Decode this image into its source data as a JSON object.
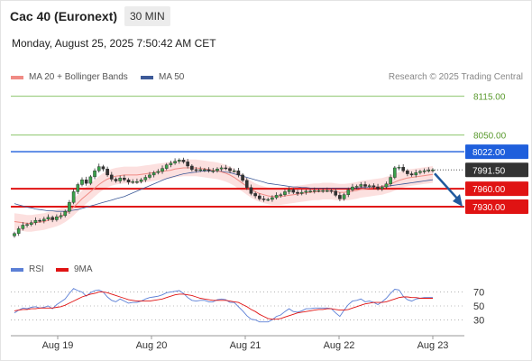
{
  "header": {
    "title": "Cac 40 (Euronext)",
    "timeframe": "30 MIN",
    "datetime": "Monday, August 25, 2025 7:50:42 AM CET"
  },
  "legend": {
    "items": [
      {
        "label": "MA 20 + Bollinger Bands",
        "color": "#f08b85"
      },
      {
        "label": "MA 50",
        "color": "#3d5a98"
      }
    ],
    "credit": "Research © 2025 Trading Central"
  },
  "levels": [
    {
      "value": 8115.0,
      "label": "8115.00",
      "kind": "target",
      "color": "#8cc56b",
      "text_color": "#5a9a2e"
    },
    {
      "value": 8050.0,
      "label": "8050.00",
      "kind": "target",
      "color": "#8cc56b",
      "text_color": "#5a9a2e"
    },
    {
      "value": 8022.0,
      "label": "8022.00",
      "kind": "pivot",
      "color": "#1f5fdc",
      "text_color": "#ffffff"
    },
    {
      "value": 7991.5,
      "label": "7991.50",
      "kind": "last",
      "color": "#333333",
      "text_color": "#ffffff"
    },
    {
      "value": 7960.0,
      "label": "7960.00",
      "kind": "support",
      "color": "#e01313",
      "text_color": "#ffffff"
    },
    {
      "value": 7930.0,
      "label": "7930.00",
      "kind": "support",
      "color": "#e01313",
      "text_color": "#ffffff"
    }
  ],
  "rsi": {
    "legend": [
      {
        "label": "RSI",
        "color": "#5b7fd6"
      },
      {
        "label": "9MA",
        "color": "#e01313"
      }
    ],
    "levels": [
      {
        "value": 70,
        "label": "70"
      },
      {
        "value": 50,
        "label": "50"
      },
      {
        "value": 30,
        "label": "30"
      }
    ]
  },
  "x_axis": {
    "labels": [
      "Aug 19",
      "Aug 20",
      "Aug 21",
      "Aug 22",
      "Aug 23"
    ]
  },
  "chart_data": {
    "type": "candlestick",
    "instrument": "Cac 40 (Euronext)",
    "interval": "30 MIN",
    "y_range": [
      7880,
      8125
    ],
    "x_categories": [
      "Aug 19",
      "Aug 20",
      "Aug 21",
      "Aug 22",
      "Aug 23"
    ],
    "close_path": [
      7885,
      7893,
      7899,
      7900,
      7903,
      7907,
      7906,
      7909,
      7912,
      7908,
      7913,
      7915,
      7922,
      7937,
      7955,
      7967,
      7975,
      7969,
      7980,
      7990,
      7997,
      7993,
      7983,
      7976,
      7973,
      7978,
      7975,
      7971,
      7972,
      7972,
      7975,
      7979,
      7983,
      7987,
      7989,
      7994,
      8000,
      8003,
      8006,
      8008,
      8005,
      7998,
      7992,
      7991,
      7992,
      7992,
      7990,
      7990,
      7993,
      7995,
      7994,
      7990,
      7990,
      7983,
      7974,
      7962,
      7952,
      7948,
      7943,
      7942,
      7942,
      7945,
      7949,
      7950,
      7955,
      7958,
      7954,
      7952,
      7954,
      7956,
      7956,
      7957,
      7957,
      7957,
      7957,
      7956,
      7949,
      7943,
      7950,
      7958,
      7963,
      7964,
      7967,
      7964,
      7965,
      7963,
      7960,
      7963,
      7968,
      7979,
      7995,
      7996,
      7990,
      7985,
      7983,
      7987,
      7989,
      7990,
      7991,
      7991.5
    ],
    "ma20_path": [
      7905,
      7904,
      7903,
      7902,
      7902,
      7903,
      7904,
      7905,
      7907,
      7909,
      7911,
      7914,
      7918,
      7923,
      7929,
      7936,
      7943,
      7949,
      7955,
      7961,
      7967,
      7972,
      7976,
      7979,
      7981,
      7982,
      7983,
      7983,
      7983,
      7983,
      7984,
      7985,
      7986,
      7987,
      7988,
      7989,
      7990,
      7991,
      7993,
      7994,
      7995,
      7995,
      7995,
      7995,
      7994,
      7993,
      7992,
      7991,
      7990,
      7988,
      7986,
      7983,
      7979,
      7974,
      7969,
      7964,
      7959,
      7955,
      7952,
      7950,
      7948,
      7947,
      7947,
      7947,
      7948,
      7949,
      7950,
      7951,
      7952,
      7953,
      7954,
      7955,
      7955,
      7956,
      7956,
      7956,
      7955,
      7954,
      7954,
      7955,
      7956,
      7957,
      7959,
      7960,
      7961,
      7962,
      7963,
      7964,
      7966,
      7968,
      7971,
      7974,
      7976,
      7978,
      7979,
      7980,
      7981,
      7982,
      7983,
      7984
    ],
    "ma50_path": [
      7935,
      7933,
      7931,
      7929,
      7928,
      7926,
      7925,
      7924,
      7923,
      7923,
      7922,
      7922,
      7922,
      7923,
      7924,
      7925,
      7927,
      7929,
      7931,
      7933,
      7935,
      7937,
      7939,
      7941,
      7943,
      7945,
      7947,
      7950,
      7953,
      7956,
      7959,
      7962,
      7965,
      7968,
      7971,
      7974,
      7977,
      7979,
      7981,
      7983,
      7985,
      7986,
      7987,
      7988,
      7989,
      7990,
      7990,
      7990,
      7990,
      7989,
      7988,
      7987,
      7985,
      7983,
      7981,
      7979,
      7977,
      7975,
      7973,
      7971,
      7969,
      7968,
      7967,
      7966,
      7965,
      7964,
      7963,
      7963,
      7962,
      7962,
      7961,
      7961,
      7961,
      7961,
      7961,
      7961,
      7961,
      7961,
      7961,
      7961,
      7961,
      7961,
      7962,
      7962,
      7962,
      7963,
      7963,
      7964,
      7964,
      7965,
      7966,
      7967,
      7968,
      7969,
      7970,
      7971,
      7972,
      7973,
      7974,
      7975
    ],
    "rsi_path": [
      40,
      44,
      47,
      46,
      48,
      49,
      47,
      48,
      50,
      46,
      52,
      56,
      60,
      68,
      75,
      72,
      70,
      64,
      69,
      72,
      73,
      70,
      63,
      58,
      56,
      60,
      57,
      54,
      55,
      55,
      57,
      60,
      62,
      63,
      64,
      66,
      69,
      70,
      71,
      72,
      68,
      62,
      58,
      57,
      58,
      58,
      56,
      56,
      59,
      60,
      59,
      55,
      55,
      49,
      43,
      36,
      31,
      30,
      27,
      27,
      27,
      30,
      35,
      37,
      42,
      46,
      42,
      41,
      43,
      46,
      46,
      47,
      47,
      47,
      47,
      46,
      40,
      35,
      44,
      52,
      57,
      58,
      60,
      56,
      57,
      55,
      52,
      56,
      61,
      68,
      74,
      73,
      64,
      59,
      57,
      60,
      61,
      62,
      62,
      62
    ],
    "rsi_ma_path": [
      43,
      44,
      45,
      45,
      46,
      46,
      47,
      47,
      47,
      47,
      48,
      49,
      51,
      54,
      57,
      60,
      63,
      65,
      67,
      68,
      70,
      70,
      69,
      67,
      65,
      63,
      61,
      59,
      58,
      57,
      57,
      57,
      57,
      58,
      59,
      60,
      62,
      64,
      66,
      67,
      67,
      66,
      65,
      63,
      61,
      60,
      59,
      58,
      58,
      58,
      58,
      57,
      56,
      55,
      52,
      49,
      45,
      42,
      38,
      35,
      32,
      31,
      31,
      32,
      34,
      36,
      38,
      40,
      41,
      42,
      43,
      44,
      45,
      45,
      46,
      46,
      45,
      44,
      44,
      45,
      47,
      49,
      51,
      53,
      54,
      55,
      55,
      55,
      56,
      58,
      60,
      62,
      63,
      63,
      62,
      62,
      61,
      61,
      61,
      61
    ],
    "bollinger_half_width": 14,
    "rsi_range": [
      15,
      85
    ],
    "forecast": "Arrow pointing down towards 7930.00"
  }
}
